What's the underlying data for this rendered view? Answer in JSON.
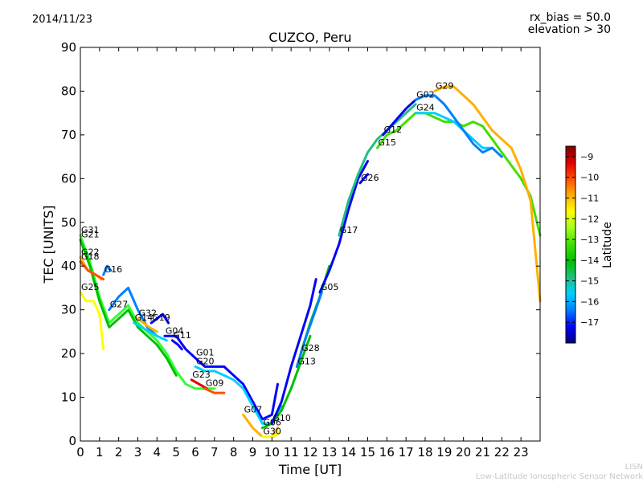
{
  "header": {
    "date": "2014/11/23",
    "rx_bias": "rx_bias = 50.0",
    "elevation": "elevation > 30"
  },
  "footer": {
    "line1": "LISN",
    "line2": "Low-Latitude Ionospheric Sensor Network"
  },
  "colorbar": {
    "label": "Latitude",
    "min": -18,
    "max": -8.5,
    "ticks": [
      "-9",
      "-10",
      "-11",
      "-12",
      "-13",
      "-14",
      "-15",
      "-16",
      "-17"
    ],
    "colors": [
      "#00007f",
      "#0000ff",
      "#0080ff",
      "#00d0ff",
      "#20c080",
      "#00c000",
      "#40e000",
      "#a0ff20",
      "#ffff00",
      "#ffb000",
      "#ff5000",
      "#e00000",
      "#7f0000"
    ]
  },
  "chart_data": {
    "type": "line",
    "title": "CUZCO, Peru",
    "xlabel": "Time [UT]",
    "ylabel": "TEC [UNITS]",
    "xlim": [
      0,
      24
    ],
    "ylim": [
      0,
      90
    ],
    "xticks": [
      "0",
      "1",
      "2",
      "3",
      "4",
      "5",
      "6",
      "7",
      "8",
      "9",
      "10",
      "11",
      "12",
      "13",
      "14",
      "15",
      "16",
      "17",
      "18",
      "19",
      "20",
      "21",
      "22",
      "23"
    ],
    "yticks": [
      "0",
      "10",
      "20",
      "30",
      "40",
      "50",
      "60",
      "70",
      "80",
      "90"
    ],
    "series": [
      {
        "name": "G31",
        "color": "#30ff30",
        "x": [
          0,
          0.5,
          1,
          1.5,
          2,
          2.5,
          3,
          3.5,
          4,
          4.5,
          5,
          5.5,
          6,
          6.5,
          7
        ],
        "y": [
          47,
          41,
          33,
          27,
          29,
          31,
          27,
          25,
          23,
          20,
          16,
          13,
          12,
          12,
          12
        ]
      },
      {
        "name": "G21",
        "color": "#00c000",
        "x": [
          0,
          0.5,
          1,
          1.5,
          2,
          2.5,
          3,
          3.5,
          4,
          4.5,
          5
        ],
        "y": [
          46,
          40,
          32,
          26,
          28,
          30,
          26,
          24,
          22,
          19,
          15
        ]
      },
      {
        "name": "G22",
        "color": "#ffb000",
        "x": [
          0,
          0.4,
          0.8,
          1.1
        ],
        "y": [
          42,
          39,
          38,
          37
        ]
      },
      {
        "name": "G18",
        "color": "#ff5000",
        "x": [
          0,
          0.4,
          0.8,
          1.2
        ],
        "y": [
          41,
          39,
          38,
          37
        ]
      },
      {
        "name": "G16",
        "color": "#0080ff",
        "x": [
          1.2,
          1.4,
          1.6
        ],
        "y": [
          38,
          40,
          39
        ]
      },
      {
        "name": "G25",
        "color": "#ffff00",
        "x": [
          0,
          0.3,
          0.7,
          1.0,
          1.2
        ],
        "y": [
          34,
          32,
          32,
          29,
          21
        ]
      },
      {
        "name": "G27",
        "color": "#0080ff",
        "x": [
          1.5,
          2.0,
          2.5,
          3.0,
          3.5,
          4.0
        ],
        "y": [
          30,
          33,
          35,
          30,
          26,
          24
        ]
      },
      {
        "name": "G32",
        "color": "#ffb000",
        "x": [
          3.0,
          3.3,
          3.6,
          4.0
        ],
        "y": [
          28,
          27,
          26,
          25
        ]
      },
      {
        "name": "G14",
        "color": "#00d0ff",
        "x": [
          2.8,
          3.2,
          3.6,
          4.0,
          4.5
        ],
        "y": [
          27,
          26,
          25,
          24,
          23
        ]
      },
      {
        "name": "G19",
        "color": "#0000ff",
        "x": [
          3.7,
          4.0,
          4.3,
          4.6
        ],
        "y": [
          27,
          28,
          29,
          27
        ]
      },
      {
        "name": "G04",
        "color": "#0000ff",
        "x": [
          4.4,
          5.0,
          5.5,
          6.0
        ],
        "y": [
          24,
          24,
          21,
          19
        ]
      },
      {
        "name": "G11",
        "color": "#0000ff",
        "x": [
          4.8,
          5.1,
          5.3
        ],
        "y": [
          23,
          22,
          21
        ]
      },
      {
        "name": "G01",
        "color": "#0000ff",
        "x": [
          6.0,
          6.5,
          7.0,
          7.5,
          8.0,
          8.5,
          9.0,
          9.5,
          10.0,
          10.3
        ],
        "y": [
          19,
          17,
          17,
          17,
          15,
          13,
          9,
          5,
          6,
          13
        ]
      },
      {
        "name": "G20",
        "color": "#00d0ff",
        "x": [
          6.0,
          6.5,
          7.0,
          7.5,
          8.0,
          8.5,
          9.0,
          9.5,
          10.0,
          10.5
        ],
        "y": [
          17,
          16,
          16,
          15,
          14,
          12,
          8,
          4,
          4,
          8
        ]
      },
      {
        "name": "G23",
        "color": "#e00000",
        "x": [
          5.8,
          6.2,
          6.6
        ],
        "y": [
          14,
          13,
          12
        ]
      },
      {
        "name": "G09",
        "color": "#ff5000",
        "x": [
          6.5,
          7.0,
          7.5
        ],
        "y": [
          12,
          11,
          11
        ]
      },
      {
        "name": "G07",
        "color": "#ffb000",
        "x": [
          8.5,
          9.0,
          9.5,
          10.0,
          10.3
        ],
        "y": [
          6,
          3,
          1,
          1,
          3
        ]
      },
      {
        "name": "G06",
        "color": "#00c000",
        "x": [
          9.5,
          10.0,
          10.5,
          11.0,
          11.5,
          12.0
        ],
        "y": [
          3,
          4,
          7,
          12,
          18,
          24
        ]
      },
      {
        "name": "G30",
        "color": "#ffff00",
        "x": [
          9.5,
          9.8,
          10.1,
          10.4
        ],
        "y": [
          1,
          1,
          1,
          2
        ]
      },
      {
        "name": "G10",
        "color": "#0000ff",
        "x": [
          10.0,
          10.5,
          11.0,
          11.5,
          12.0,
          12.3
        ],
        "y": [
          4,
          9,
          17,
          24,
          31,
          37
        ]
      },
      {
        "name": "G28",
        "color": "#00c000",
        "x": [
          11.5,
          12.0,
          12.5,
          13.0
        ],
        "y": [
          20,
          27,
          33,
          40
        ]
      },
      {
        "name": "G13",
        "color": "#0080ff",
        "x": [
          11.3,
          11.8,
          12.2,
          12.6
        ],
        "y": [
          17,
          24,
          29,
          34
        ]
      },
      {
        "name": "G05",
        "color": "#0000ff",
        "x": [
          12.5,
          13.0,
          13.5,
          14.0,
          14.5,
          15.0
        ],
        "y": [
          34,
          39,
          45,
          53,
          60,
          64
        ]
      },
      {
        "name": "G17",
        "color": "#20c080",
        "x": [
          13.5,
          14.0,
          14.5,
          15.0,
          15.5,
          16.0,
          16.5,
          17.0,
          17.5
        ],
        "y": [
          47,
          55,
          61,
          66,
          69,
          71,
          73,
          75,
          77
        ]
      },
      {
        "name": "G26",
        "color": "#0000ff",
        "x": [
          14.6,
          14.8,
          15.0
        ],
        "y": [
          59,
          60,
          61
        ]
      },
      {
        "name": "G12",
        "color": "#0000ff",
        "x": [
          15.8,
          16.2,
          16.6,
          17.0,
          17.5
        ],
        "y": [
          70,
          72,
          74,
          76,
          78
        ]
      },
      {
        "name": "G15",
        "color": "#40e000",
        "x": [
          15.5,
          16.0,
          16.5,
          17.0,
          17.5,
          18.0,
          18.5,
          19.0,
          19.5,
          20.0,
          20.5,
          21.0,
          21.5,
          22.0,
          22.5,
          23.0,
          23.5,
          24.0
        ],
        "y": [
          67,
          70,
          71,
          73,
          75,
          75,
          74,
          73,
          73,
          72,
          73,
          72,
          69,
          66,
          63,
          60,
          56,
          47
        ]
      },
      {
        "name": "G24",
        "color": "#00d0ff",
        "x": [
          17.5,
          18.0,
          18.5,
          19.0,
          19.5,
          20.0,
          20.5,
          21.0,
          21.5
        ],
        "y": [
          75,
          75,
          75,
          74,
          73,
          71,
          69,
          67,
          67
        ]
      },
      {
        "name": "G02",
        "color": "#0080ff",
        "x": [
          17.5,
          18.0,
          18.5,
          19.0,
          19.5,
          20.0,
          20.5,
          21.0,
          21.5,
          22.0
        ],
        "y": [
          78,
          79,
          79,
          77,
          74,
          71,
          68,
          66,
          67,
          65
        ]
      },
      {
        "name": "G29",
        "color": "#ffb000",
        "x": [
          18.5,
          19.0,
          19.5,
          20.0,
          20.5,
          21.0,
          21.5,
          22.0,
          22.5,
          23.0,
          23.5,
          24.0
        ],
        "y": [
          80,
          81,
          81,
          79,
          77,
          74,
          71,
          69,
          67,
          62,
          55,
          32
        ]
      }
    ],
    "grid": false
  }
}
